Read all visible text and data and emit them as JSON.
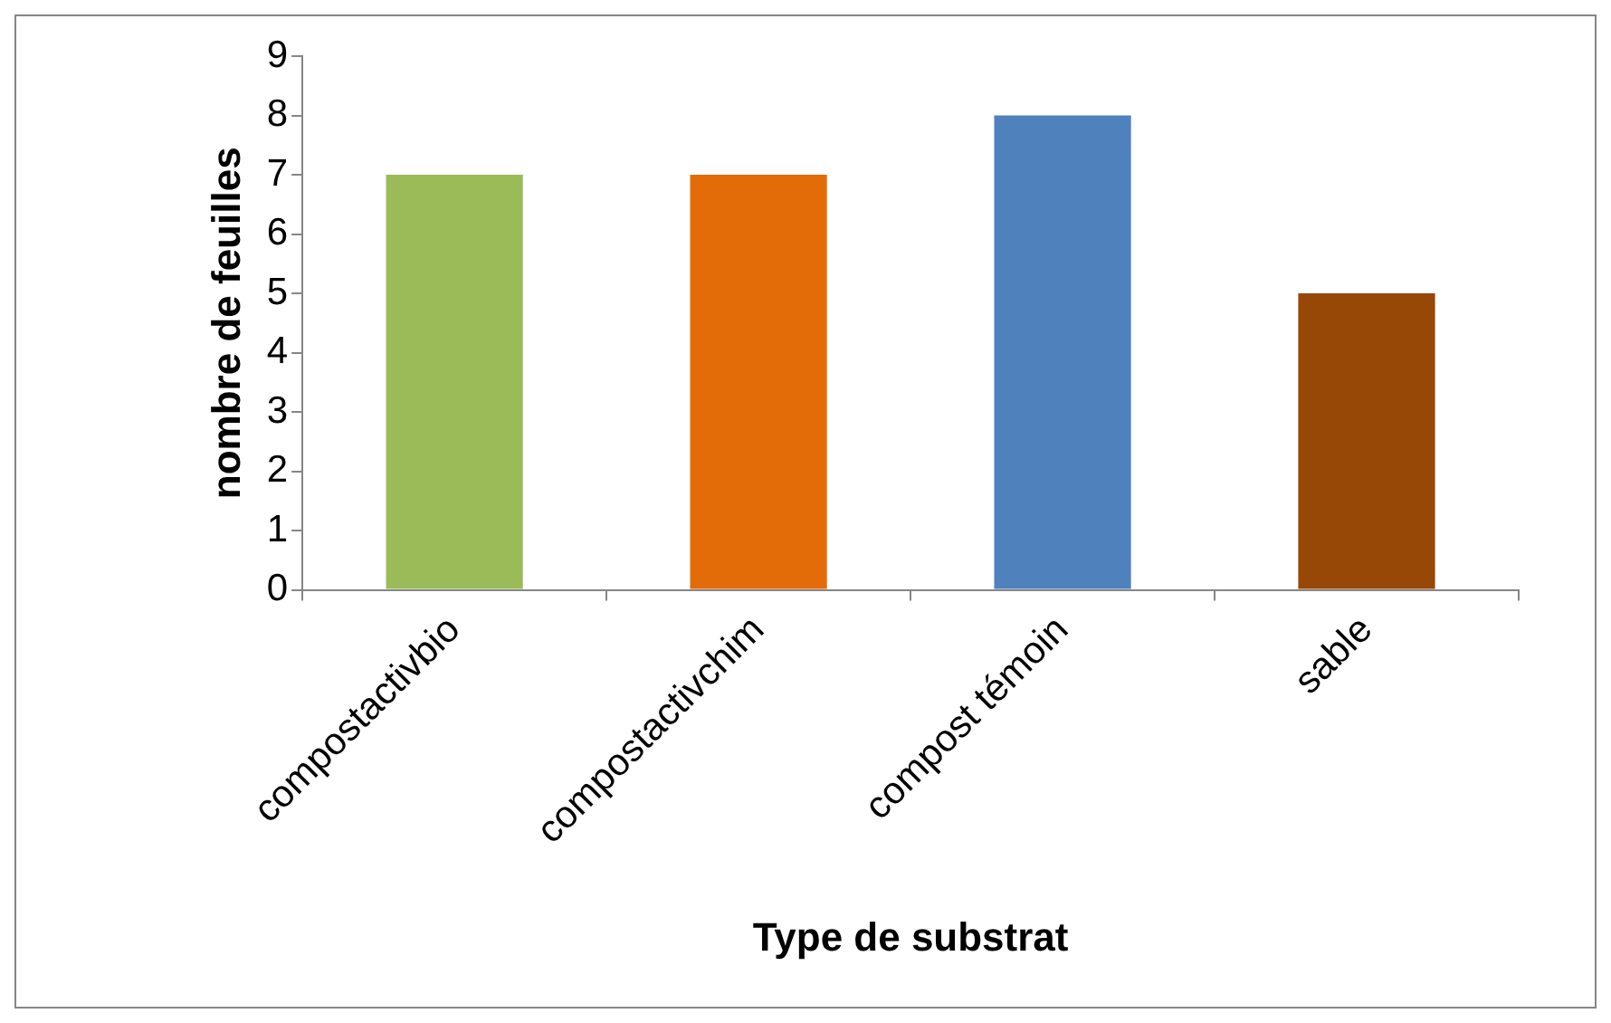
{
  "chart_data": {
    "type": "bar",
    "xlabel": "Type de substrat",
    "ylabel": "nombre de feuilles",
    "categories": [
      "compostactivbio",
      "compostactivchim",
      "compost témoin",
      "sable"
    ],
    "values": [
      7,
      7,
      8,
      5
    ],
    "colors": [
      "#9bbb59",
      "#e36c09",
      "#4f81bd",
      "#974706"
    ],
    "ylim": [
      0,
      9
    ],
    "yticks": [
      0,
      1,
      2,
      3,
      4,
      5,
      6,
      7,
      8,
      9
    ],
    "grid": false,
    "legend": false
  }
}
